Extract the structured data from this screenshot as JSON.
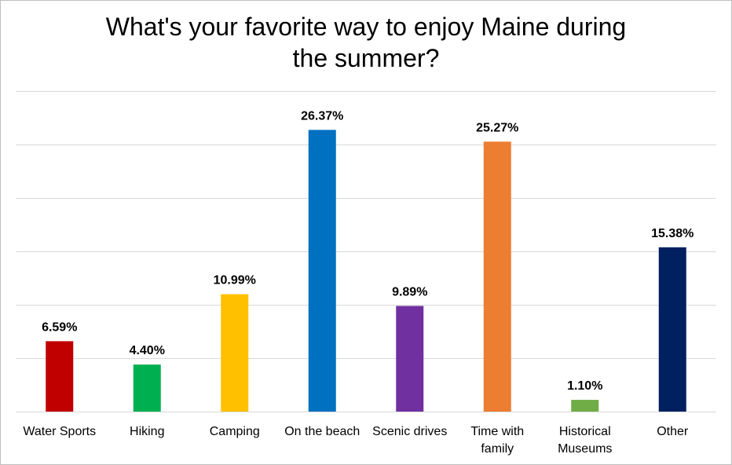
{
  "chart_data": {
    "type": "bar",
    "title_lines": [
      "What's your favorite way to enjoy Maine during",
      "the summer?"
    ],
    "categories": [
      [
        "Water Sports"
      ],
      [
        "Hiking"
      ],
      [
        "Camping"
      ],
      [
        "On the beach"
      ],
      [
        "Scenic drives"
      ],
      [
        "Time with",
        "family"
      ],
      [
        "Historical",
        "Museums"
      ],
      [
        "Other"
      ]
    ],
    "values": [
      6.59,
      4.4,
      10.99,
      26.37,
      9.89,
      25.27,
      1.1,
      15.38
    ],
    "data_labels": [
      "6.59%",
      "4.40%",
      "10.99%",
      "26.37%",
      "9.89%",
      "25.27%",
      "1.10%",
      "15.38%"
    ],
    "colors": [
      "#c00000",
      "#00b050",
      "#ffc000",
      "#0070c0",
      "#7030a0",
      "#ed7d31",
      "#70ad47",
      "#002060"
    ],
    "ylim": [
      0,
      30
    ],
    "grid": true,
    "gridline_color": "#d9d9d9",
    "axis_color": "#d9d9d9",
    "legend": "none"
  }
}
